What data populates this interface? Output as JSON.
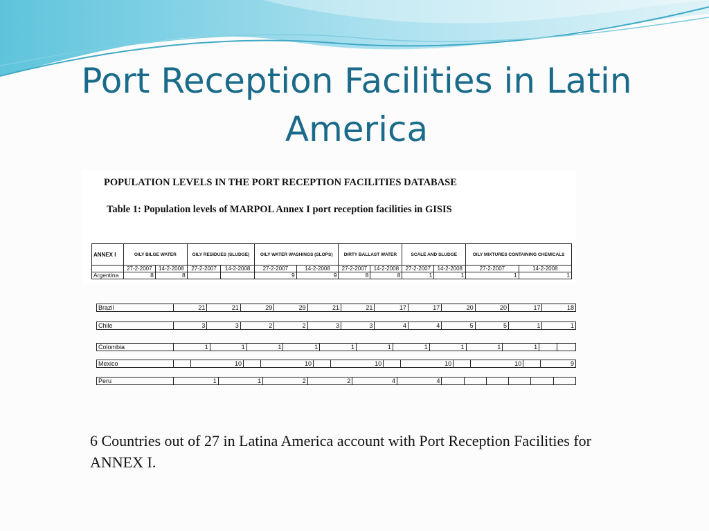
{
  "slide": {
    "title": "Port Reception Facilities in Latin America",
    "caption": "6 Countries out of 27 in Latina America account with Port Reception Facilities for ANNEX I."
  },
  "document": {
    "heading": "POPULATION LEVELS IN THE PORT RECEPTION FACILITIES DATABASE",
    "table_caption": "Table 1:   Population levels of MARPOL Annex I port reception facilities in GISIS",
    "annex_label": "ANNEX I",
    "categories": [
      "OILY BILGE WATER",
      "OILY RESIDUES (SLUDGE)",
      "OILY WATER WASHINGS (SLOPS)",
      "DIRTY BALLAST WATER",
      "SCALE AND SLUDGE",
      "OILY MIXTURES CONTAINING CHEMICALS"
    ],
    "dates": [
      "27-2-2007",
      "14-2-2008"
    ],
    "rows": [
      {
        "country": "Argentina",
        "values": [
          "8",
          "8",
          "",
          "",
          "9",
          "9",
          "8",
          "8",
          "1",
          "1",
          "1",
          "1"
        ]
      },
      {
        "country": "Brazil",
        "values": [
          "21",
          "21",
          "29",
          "29",
          "21",
          "21",
          "17",
          "17",
          "20",
          "20",
          "17",
          "18"
        ]
      },
      {
        "country": "Chile",
        "values": [
          "3",
          "3",
          "2",
          "2",
          "3",
          "3",
          "4",
          "4",
          "5",
          "5",
          "1",
          "1"
        ]
      },
      {
        "country": "Colombia",
        "values": [
          "1",
          "1",
          "1",
          "1",
          "1",
          "1",
          "1",
          "1",
          "1",
          "1",
          "",
          ""
        ]
      },
      {
        "country": "Mexico",
        "values": [
          "",
          "10",
          "",
          "10",
          "",
          "10",
          "",
          "10",
          "",
          "10",
          "",
          "9"
        ]
      },
      {
        "country": "Peru",
        "values": [
          "1",
          "1",
          "2",
          "2",
          "4",
          "4",
          "",
          "",
          "",
          "",
          "",
          ""
        ]
      }
    ]
  },
  "colors": {
    "title": "#1a6b8a",
    "wave_light": "#bfe6f0",
    "wave_dark": "#3fa9c6"
  }
}
